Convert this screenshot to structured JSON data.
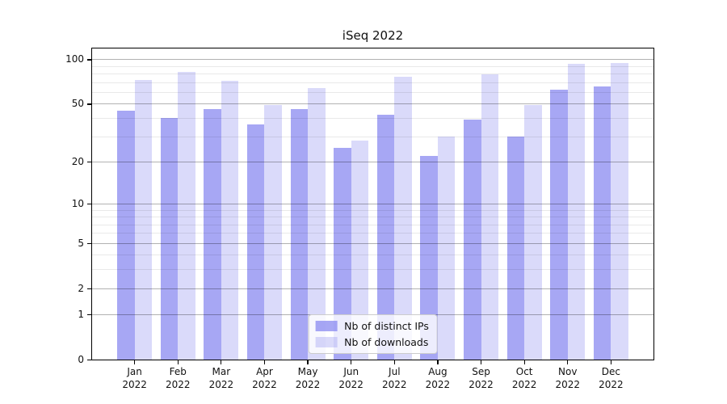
{
  "chart_data": {
    "type": "bar",
    "title": "iSeq 2022",
    "categories": [
      "Jan",
      "Feb",
      "Mar",
      "Apr",
      "May",
      "Jun",
      "Jul",
      "Aug",
      "Sep",
      "Oct",
      "Nov",
      "Dec"
    ],
    "year_label": "2022",
    "series": [
      {
        "name": "Nb of distinct IPs",
        "values": [
          45,
          40,
          46,
          36,
          46,
          25,
          42,
          22,
          39,
          30,
          62,
          66
        ],
        "color": "#8585f0",
        "alpha": 0.72
      },
      {
        "name": "Nb of downloads",
        "values": [
          73,
          82,
          72,
          49,
          64,
          28,
          76,
          30,
          79,
          49,
          93,
          95
        ],
        "color": "#8585f0",
        "alpha": 0.3
      }
    ],
    "yscale": "log1p",
    "ylim": [
      0,
      118.4
    ],
    "yticks": [
      0,
      1,
      2,
      5,
      10,
      20,
      50,
      100
    ],
    "yticks_minor": [
      3,
      4,
      6,
      7,
      8,
      9,
      30,
      40,
      60,
      70,
      80,
      90
    ],
    "grid": true,
    "legend_position": "lower center"
  },
  "colors": {
    "grid_major": "rgba(0,0,0,0.30)",
    "grid_minor": "rgba(0,0,0,0.085)",
    "spine": "#000000",
    "legend_border": "#cccccc",
    "legend_bg": "rgba(255,255,255,0.8)"
  }
}
